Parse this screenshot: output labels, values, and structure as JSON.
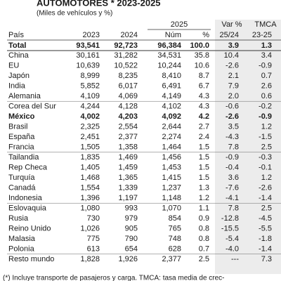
{
  "header": {
    "title": "AUTOMOTORES * 2023-2025",
    "subtitle": "(Miles de vehículos y %)"
  },
  "table": {
    "group_headers": [
      "2025",
      "Var %",
      "TMCA"
    ],
    "columns": [
      "País",
      "2023",
      "2024",
      "Núm",
      "%",
      "25/24",
      "23-25"
    ],
    "total": [
      "Total",
      "93,541",
      "92,723",
      "96,384",
      "100.0",
      "3.9",
      "1.3"
    ],
    "rows": [
      [
        "China",
        "30,161",
        "31,282",
        "34,531",
        "35.8",
        "10.4",
        "3.4"
      ],
      [
        "EU",
        "10,639",
        "10,522",
        "10,244",
        "10.6",
        "-2.6",
        "-0.9"
      ],
      [
        "Japón",
        "8,999",
        "8,235",
        "8,410",
        "8.7",
        "2.1",
        "0.7"
      ],
      [
        "India",
        "5,852",
        "6,017",
        "6,491",
        "6.7",
        "7.9",
        "2.6"
      ],
      [
        "Alemania",
        "4,109",
        "4,069",
        "4,149",
        "4.3",
        "2.0",
        "0.6"
      ],
      [
        "Corea del Sur",
        "4,244",
        "4,128",
        "4,102",
        "4.3",
        "-0.6",
        "-0.2"
      ],
      [
        "México",
        "4,002",
        "4,203",
        "4,092",
        "4.2",
        "-2.6",
        "-0.9"
      ],
      [
        "Brasil",
        "2,325",
        "2,554",
        "2,644",
        "2.7",
        "3.5",
        "1.2"
      ],
      [
        "España",
        "2,451",
        "2,377",
        "2,274",
        "2.4",
        "-4.3",
        "-1.5"
      ],
      [
        "Francia",
        "1,505",
        "1,358",
        "1,464",
        "1.5",
        "7.8",
        "2.5"
      ],
      [
        "Tailandia",
        "1,835",
        "1,469",
        "1,456",
        "1.5",
        "-0.9",
        "-0.3"
      ],
      [
        "Rep Checa",
        "1,405",
        "1,459",
        "1,453",
        "1.5",
        "-0.4",
        "-0.1"
      ],
      [
        "Turquía",
        "1,468",
        "1,365",
        "1,415",
        "1.5",
        "3.6",
        "1.2"
      ],
      [
        "Canadá",
        "1,554",
        "1,339",
        "1,237",
        "1.3",
        "-7.6",
        "-2.6"
      ],
      [
        "Indonesia",
        "1,396",
        "1,197",
        "1,148",
        "1.2",
        "-4.1",
        "-1.4"
      ],
      [
        "Eslovaquia",
        "1,080",
        "993",
        "1,070",
        "1.1",
        "7.8",
        "2.5"
      ],
      [
        "Rusia",
        "730",
        "979",
        "854",
        "0.9",
        "-12.8",
        "-4.5"
      ],
      [
        "Reino Unido",
        "1,026",
        "905",
        "765",
        "0.8",
        "-15.5",
        "-5.5"
      ],
      [
        "Malasia",
        "775",
        "790",
        "748",
        "0.8",
        "-5.4",
        "-1.8"
      ],
      [
        "Polonia",
        "613",
        "654",
        "628",
        "0.7",
        "-4.0",
        "-1.4"
      ],
      [
        "Resto mundo",
        "1,828",
        "1,926",
        "2,377",
        "2.5",
        "---",
        "7.3"
      ]
    ]
  },
  "footnote": "(*) Incluye transporte de pasajeros y carga. TMCA: tasa media de crec-"
}
